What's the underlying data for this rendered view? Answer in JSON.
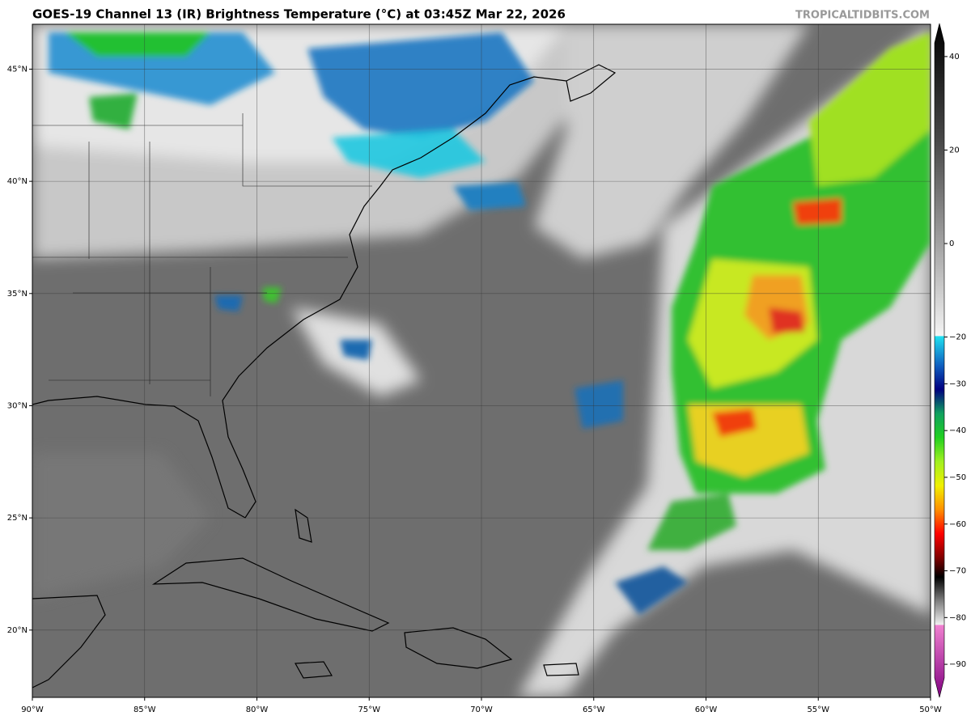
{
  "title": "GOES-19 Channel 13 (IR) Brightness Temperature (°C) at 03:45Z Mar 22, 2026",
  "credit": "TROPICALTIDBITS.COM",
  "map": {
    "xlim": [
      -90,
      -50
    ],
    "ylim": [
      17,
      47
    ],
    "xticks": [
      {
        "value": -90,
        "label": "90°W"
      },
      {
        "value": -85,
        "label": "85°W"
      },
      {
        "value": -80,
        "label": "80°W"
      },
      {
        "value": -75,
        "label": "75°W"
      },
      {
        "value": -70,
        "label": "70°W"
      },
      {
        "value": -65,
        "label": "65°W"
      },
      {
        "value": -60,
        "label": "60°W"
      },
      {
        "value": -55,
        "label": "55°W"
      },
      {
        "value": -50,
        "label": "50°W"
      }
    ],
    "yticks": [
      {
        "value": 20,
        "label": "20°N"
      },
      {
        "value": 25,
        "label": "25°N"
      },
      {
        "value": 30,
        "label": "30°N"
      },
      {
        "value": 35,
        "label": "35°N"
      },
      {
        "value": 40,
        "label": "40°N"
      },
      {
        "value": 45,
        "label": "45°N"
      }
    ],
    "grid": true
  },
  "colorbar": {
    "lim": [
      -95,
      45
    ],
    "ticks": [
      40,
      20,
      0,
      {
        "value": -20,
        "label": "−20"
      },
      {
        "value": -30,
        "label": "−30"
      },
      {
        "value": -40,
        "label": "−40"
      },
      {
        "value": -50,
        "label": "−50"
      },
      {
        "value": -60,
        "label": "−60"
      },
      {
        "value": -70,
        "label": "−70"
      },
      {
        "value": -80,
        "label": "−80"
      },
      {
        "value": -90,
        "label": "−90"
      }
    ],
    "colormap": [
      {
        "value": 45,
        "color": "#000000"
      },
      {
        "value": 20,
        "color": "#4a4a4a"
      },
      {
        "value": -19.9,
        "color": "#f4f4f4"
      },
      {
        "value": -20,
        "color": "#20e0f0"
      },
      {
        "value": -26,
        "color": "#1060c0"
      },
      {
        "value": -31,
        "color": "#000080"
      },
      {
        "value": -36,
        "color": "#10a060"
      },
      {
        "value": -41,
        "color": "#20d020"
      },
      {
        "value": -46,
        "color": "#a0f020"
      },
      {
        "value": -51,
        "color": "#f0f000"
      },
      {
        "value": -56,
        "color": "#ff9000"
      },
      {
        "value": -61,
        "color": "#ff0000"
      },
      {
        "value": -66,
        "color": "#800000"
      },
      {
        "value": -70,
        "color": "#000000"
      },
      {
        "value": -75,
        "color": "#808080"
      },
      {
        "value": -79.9,
        "color": "#f0f0f0"
      },
      {
        "value": -80,
        "color": "#f080d0"
      },
      {
        "value": -95,
        "color": "#800080"
      }
    ]
  }
}
